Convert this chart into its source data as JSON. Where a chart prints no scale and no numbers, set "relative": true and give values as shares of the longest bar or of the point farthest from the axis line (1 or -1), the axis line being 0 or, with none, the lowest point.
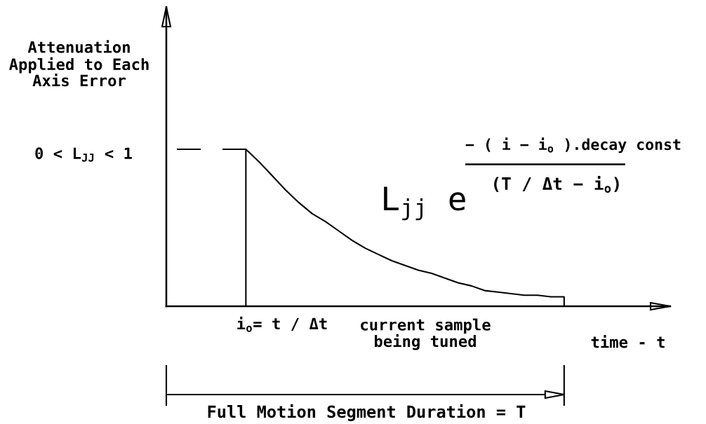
{
  "chart_data": {
    "type": "line",
    "relative": true,
    "xlabel": "time - t",
    "categories": [
      null,
      null,
      null,
      null,
      null,
      null,
      null,
      null,
      null,
      null,
      null,
      null,
      null,
      null,
      null,
      null,
      null,
      null,
      null,
      null,
      null,
      null,
      null,
      null,
      null,
      null,
      null,
      null,
      null,
      null,
      null,
      null,
      null,
      null,
      null,
      null,
      null,
      null,
      null
    ],
    "series": [
      {
        "line_style": "dashed",
        "color": "#000000",
        "values": [
          1,
          1,
          1,
          1,
          1,
          1,
          1,
          null,
          null,
          null,
          null,
          null,
          null,
          null,
          null,
          null,
          null,
          null,
          null,
          null,
          null,
          null,
          null,
          null,
          null,
          null,
          null,
          null,
          null,
          null,
          null,
          null,
          null,
          null,
          null,
          null,
          null,
          null,
          null
        ]
      },
      {
        "type": "area",
        "color": "#000000",
        "values": [
          null,
          null,
          null,
          null,
          null,
          null,
          1,
          0.92,
          0.83,
          0.74,
          0.66,
          0.59,
          0.54,
          0.48,
          0.42,
          0.37,
          0.33,
          0.29,
          0.26,
          0.23,
          0.21,
          0.18,
          0.15,
          0.13,
          0.1,
          0.09,
          0.08,
          0.07,
          0.07,
          0.06,
          0.06,
          null,
          null,
          null,
          null,
          null,
          null,
          null,
          null
        ]
      }
    ],
    "annotations": [
      "Attenuation\nApplied to Each\nAxis Error",
      "0 < L$_{JJ}$ < 1",
      "i$_{o}$= t / Δt",
      "current sample\nbeing tuned",
      "L$_{jj}$ e",
      "− ( i − i$_{o}$ ).decay const",
      "(T / Δt − i$_{o}$)",
      "Full Motion Segment Duration = T"
    ]
  }
}
